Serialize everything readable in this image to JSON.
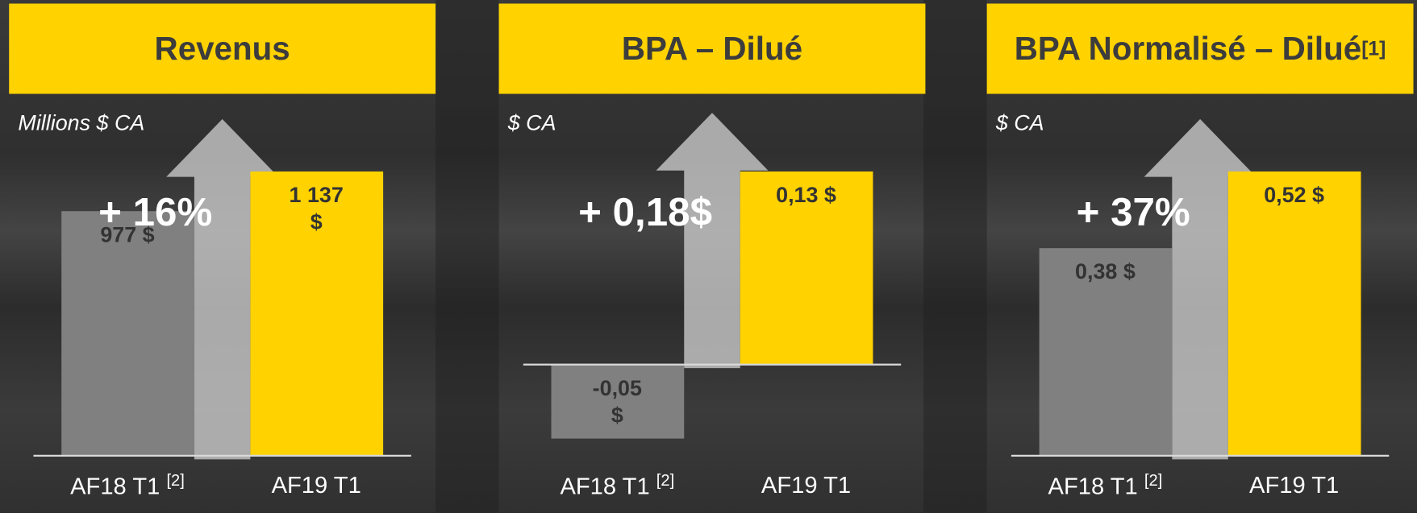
{
  "chart_data": [
    {
      "type": "bar",
      "title": "Revenus",
      "subtitle": "Millions $ CA",
      "categories": [
        "AF18 T1",
        "AF19 T1"
      ],
      "category_notes": [
        "[2]",
        null
      ],
      "values": [
        977,
        1137
      ],
      "value_labels": [
        "977 $",
        "1 137 $"
      ],
      "colors": [
        "#808080",
        "#FFD200"
      ],
      "annotation": "+ 16%"
    },
    {
      "type": "bar",
      "title": "BPA – Dilué",
      "subtitle": "$ CA",
      "categories": [
        "AF18 T1",
        "AF19 T1"
      ],
      "category_notes": [
        "[2]",
        null
      ],
      "values": [
        -0.05,
        0.13
      ],
      "value_labels": [
        "-0,05 $",
        "0,13 $"
      ],
      "colors": [
        "#808080",
        "#FFD200"
      ],
      "annotation": "+ 0,18$"
    },
    {
      "type": "bar",
      "title": "BPA Normalisé – Dilué",
      "title_note": "[1]",
      "subtitle": "$ CA",
      "categories": [
        "AF18 T1",
        "AF19 T1"
      ],
      "category_notes": [
        "[2]",
        null
      ],
      "values": [
        0.38,
        0.52
      ],
      "value_labels": [
        "0,38 $",
        "0,52 $"
      ],
      "colors": [
        "#808080",
        "#FFD200"
      ],
      "annotation": "+ 37%"
    }
  ]
}
